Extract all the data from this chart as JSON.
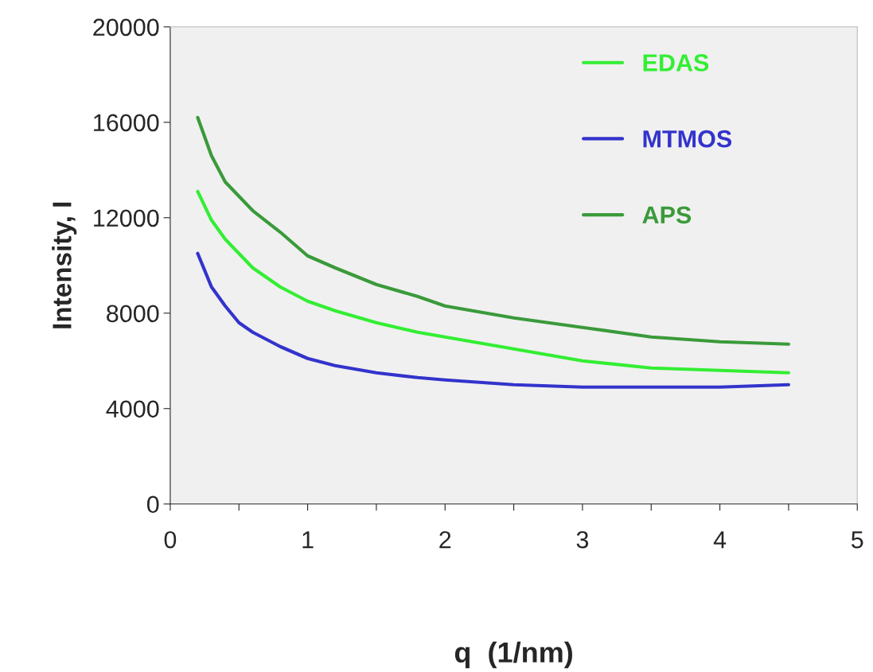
{
  "chart_data": {
    "type": "line",
    "xlabel": "q  (1/nm)",
    "ylabel": "Intensity, I",
    "x": [
      0.2,
      0.3,
      0.4,
      0.5,
      0.6,
      0.8,
      1.0,
      1.2,
      1.5,
      1.8,
      2.0,
      2.5,
      3.0,
      3.5,
      4.0,
      4.5
    ],
    "series": [
      {
        "name": "EDAS",
        "color": "#33ee33",
        "values": [
          13100,
          11900,
          11100,
          10500,
          9900,
          9100,
          8500,
          8100,
          7600,
          7200,
          7000,
          6500,
          6000,
          5700,
          5600,
          5500
        ]
      },
      {
        "name": "MTMOS",
        "color": "#3333cc",
        "values": [
          10500,
          9100,
          8300,
          7600,
          7200,
          6600,
          6100,
          5800,
          5500,
          5300,
          5200,
          5000,
          4900,
          4900,
          4900,
          5000
        ]
      },
      {
        "name": "APS",
        "color": "#3a9a3a",
        "values": [
          16200,
          14600,
          13500,
          12900,
          12300,
          11400,
          10400,
          9900,
          9200,
          8700,
          8300,
          7800,
          7400,
          7000,
          6800,
          6700
        ]
      }
    ],
    "xlim": [
      0,
      5
    ],
    "xticks": [
      0,
      {
        "value": 0.5,
        "label": null
      },
      1,
      {
        "value": 1.5,
        "label": null
      },
      2,
      {
        "value": 2.5,
        "label": null
      },
      3,
      {
        "value": 3.5,
        "label": null
      },
      4,
      {
        "value": 4.5,
        "label": null
      },
      5
    ],
    "ylim": [
      0,
      20000
    ],
    "yticks": [
      0,
      4000,
      8000,
      12000,
      16000,
      20000
    ],
    "legend": "top right",
    "marker": "none",
    "line_style": "solid"
  }
}
